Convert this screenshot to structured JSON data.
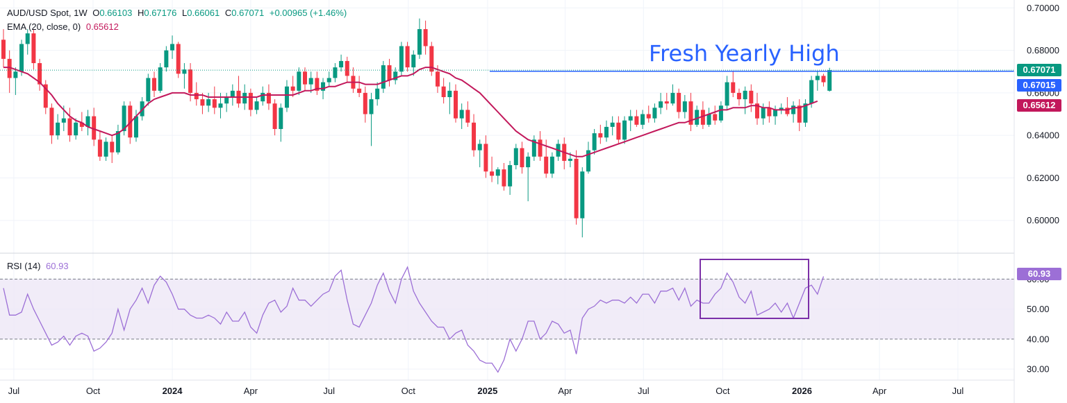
{
  "header": {
    "symbol": "AUD/USD Spot, 1W",
    "open_label": "O",
    "open": "0.66103",
    "high_label": "H",
    "high": "0.67176",
    "low_label": "L",
    "low": "0.66061",
    "close_label": "C",
    "close": "0.67071",
    "change": "+0.00965 (+1.46%)",
    "ema_label": "EMA (20, close, 0)",
    "ema_value": "0.65612",
    "rsi_label": "RSI (14)",
    "rsi_value": "60.93"
  },
  "annotation": "Fresh Yearly High",
  "badges": {
    "close": "0.67071",
    "level": "0.67015",
    "ema": "0.65612",
    "rsi": "60.93"
  },
  "colors": {
    "up": "#089981",
    "down": "#f23645",
    "ema": "#c2185b",
    "rsi": "#9c6fd6",
    "rsi_band": "#ede7f6",
    "level": "#2962ff",
    "box": "#7b2fa8"
  },
  "chart_data": [
    {
      "type": "candlestick",
      "interval": "1W",
      "x_tick_labels": [
        "Jul",
        "Oct",
        "2024",
        "Apr",
        "Jul",
        "Oct",
        "2025",
        "Apr",
        "Jul",
        "Oct",
        "2026",
        "Apr",
        "Jul"
      ],
      "y_tick_labels": [
        "0.70000",
        "0.68000",
        "0.66000",
        "0.64000",
        "0.62000",
        "0.60000"
      ],
      "ylim": [
        0.5862,
        0.7037
      ],
      "start_week": "2023-06-19",
      "ohlc": [
        [
          0.685,
          0.69,
          0.672,
          0.676
        ],
        [
          0.676,
          0.68,
          0.66,
          0.667
        ],
        [
          0.667,
          0.672,
          0.659,
          0.67
        ],
        [
          0.67,
          0.685,
          0.668,
          0.683
        ],
        [
          0.683,
          0.69,
          0.678,
          0.688
        ],
        [
          0.688,
          0.69,
          0.671,
          0.674
        ],
        [
          0.674,
          0.676,
          0.661,
          0.664
        ],
        [
          0.664,
          0.666,
          0.65,
          0.653
        ],
        [
          0.653,
          0.655,
          0.636,
          0.64
        ],
        [
          0.64,
          0.65,
          0.638,
          0.646
        ],
        [
          0.646,
          0.654,
          0.642,
          0.648
        ],
        [
          0.648,
          0.653,
          0.637,
          0.64
        ],
        [
          0.64,
          0.648,
          0.638,
          0.646
        ],
        [
          0.646,
          0.651,
          0.642,
          0.644
        ],
        [
          0.644,
          0.652,
          0.64,
          0.649
        ],
        [
          0.649,
          0.653,
          0.635,
          0.638
        ],
        [
          0.638,
          0.642,
          0.628,
          0.63
        ],
        [
          0.63,
          0.639,
          0.628,
          0.637
        ],
        [
          0.637,
          0.64,
          0.627,
          0.632
        ],
        [
          0.632,
          0.645,
          0.631,
          0.642
        ],
        [
          0.642,
          0.656,
          0.64,
          0.654
        ],
        [
          0.654,
          0.656,
          0.636,
          0.639
        ],
        [
          0.639,
          0.652,
          0.637,
          0.649
        ],
        [
          0.649,
          0.658,
          0.647,
          0.656
        ],
        [
          0.656,
          0.669,
          0.654,
          0.667
        ],
        [
          0.667,
          0.67,
          0.658,
          0.661
        ],
        [
          0.661,
          0.674,
          0.66,
          0.672
        ],
        [
          0.672,
          0.682,
          0.67,
          0.68
        ],
        [
          0.68,
          0.687,
          0.676,
          0.683
        ],
        [
          0.683,
          0.684,
          0.667,
          0.669
        ],
        [
          0.669,
          0.674,
          0.662,
          0.671
        ],
        [
          0.671,
          0.674,
          0.656,
          0.66
        ],
        [
          0.66,
          0.665,
          0.654,
          0.657
        ],
        [
          0.657,
          0.66,
          0.65,
          0.654
        ],
        [
          0.654,
          0.66,
          0.651,
          0.657
        ],
        [
          0.657,
          0.663,
          0.65,
          0.653
        ],
        [
          0.653,
          0.66,
          0.648,
          0.655
        ],
        [
          0.655,
          0.66,
          0.651,
          0.658
        ],
        [
          0.658,
          0.664,
          0.654,
          0.661
        ],
        [
          0.661,
          0.668,
          0.653,
          0.655
        ],
        [
          0.655,
          0.664,
          0.652,
          0.66
        ],
        [
          0.66,
          0.662,
          0.649,
          0.652
        ],
        [
          0.652,
          0.658,
          0.65,
          0.656
        ],
        [
          0.656,
          0.663,
          0.654,
          0.66
        ],
        [
          0.66,
          0.664,
          0.652,
          0.655
        ],
        [
          0.655,
          0.657,
          0.64,
          0.643
        ],
        [
          0.643,
          0.655,
          0.637,
          0.653
        ],
        [
          0.653,
          0.666,
          0.651,
          0.663
        ],
        [
          0.663,
          0.668,
          0.658,
          0.661
        ],
        [
          0.661,
          0.672,
          0.659,
          0.67
        ],
        [
          0.67,
          0.672,
          0.661,
          0.664
        ],
        [
          0.664,
          0.67,
          0.66,
          0.667
        ],
        [
          0.667,
          0.67,
          0.659,
          0.661
        ],
        [
          0.661,
          0.667,
          0.657,
          0.665
        ],
        [
          0.665,
          0.67,
          0.663,
          0.667
        ],
        [
          0.667,
          0.674,
          0.665,
          0.672
        ],
        [
          0.672,
          0.678,
          0.67,
          0.675
        ],
        [
          0.675,
          0.677,
          0.665,
          0.668
        ],
        [
          0.668,
          0.672,
          0.66,
          0.662
        ],
        [
          0.662,
          0.668,
          0.658,
          0.66
        ],
        [
          0.66,
          0.663,
          0.646,
          0.65
        ],
        [
          0.65,
          0.66,
          0.635,
          0.657
        ],
        [
          0.657,
          0.665,
          0.654,
          0.662
        ],
        [
          0.662,
          0.675,
          0.66,
          0.673
        ],
        [
          0.673,
          0.676,
          0.663,
          0.666
        ],
        [
          0.666,
          0.672,
          0.664,
          0.67
        ],
        [
          0.67,
          0.684,
          0.668,
          0.682
        ],
        [
          0.682,
          0.684,
          0.67,
          0.672
        ],
        [
          0.672,
          0.68,
          0.668,
          0.678
        ],
        [
          0.678,
          0.695,
          0.676,
          0.69
        ],
        [
          0.69,
          0.694,
          0.678,
          0.682
        ],
        [
          0.682,
          0.684,
          0.668,
          0.67
        ],
        [
          0.67,
          0.673,
          0.66,
          0.663
        ],
        [
          0.663,
          0.667,
          0.655,
          0.658
        ],
        [
          0.658,
          0.665,
          0.65,
          0.661
        ],
        [
          0.661,
          0.664,
          0.646,
          0.648
        ],
        [
          0.648,
          0.655,
          0.643,
          0.652
        ],
        [
          0.652,
          0.656,
          0.644,
          0.646
        ],
        [
          0.646,
          0.65,
          0.63,
          0.633
        ],
        [
          0.633,
          0.638,
          0.625,
          0.636
        ],
        [
          0.636,
          0.64,
          0.62,
          0.623
        ],
        [
          0.623,
          0.63,
          0.618,
          0.621
        ],
        [
          0.621,
          0.625,
          0.617,
          0.624
        ],
        [
          0.624,
          0.627,
          0.614,
          0.616
        ],
        [
          0.616,
          0.628,
          0.612,
          0.626
        ],
        [
          0.626,
          0.636,
          0.624,
          0.634
        ],
        [
          0.634,
          0.637,
          0.622,
          0.625
        ],
        [
          0.625,
          0.632,
          0.609,
          0.63
        ],
        [
          0.63,
          0.64,
          0.628,
          0.638
        ],
        [
          0.638,
          0.642,
          0.628,
          0.63
        ],
        [
          0.63,
          0.638,
          0.62,
          0.622
        ],
        [
          0.622,
          0.632,
          0.62,
          0.63
        ],
        [
          0.63,
          0.638,
          0.628,
          0.636
        ],
        [
          0.636,
          0.639,
          0.624,
          0.628
        ],
        [
          0.628,
          0.632,
          0.625,
          0.629
        ],
        [
          0.629,
          0.633,
          0.598,
          0.601
        ],
        [
          0.601,
          0.625,
          0.592,
          0.623
        ],
        [
          0.623,
          0.637,
          0.622,
          0.633
        ],
        [
          0.633,
          0.643,
          0.631,
          0.641
        ],
        [
          0.641,
          0.645,
          0.636,
          0.639
        ],
        [
          0.639,
          0.647,
          0.637,
          0.644
        ],
        [
          0.644,
          0.649,
          0.64,
          0.646
        ],
        [
          0.646,
          0.649,
          0.636,
          0.638
        ],
        [
          0.638,
          0.649,
          0.636,
          0.647
        ],
        [
          0.647,
          0.652,
          0.642,
          0.649
        ],
        [
          0.649,
          0.652,
          0.644,
          0.645
        ],
        [
          0.645,
          0.652,
          0.643,
          0.65
        ],
        [
          0.65,
          0.654,
          0.646,
          0.648
        ],
        [
          0.648,
          0.655,
          0.646,
          0.653
        ],
        [
          0.653,
          0.66,
          0.65,
          0.656
        ],
        [
          0.656,
          0.66,
          0.652,
          0.655
        ],
        [
          0.655,
          0.664,
          0.654,
          0.66
        ],
        [
          0.66,
          0.662,
          0.648,
          0.651
        ],
        [
          0.651,
          0.659,
          0.648,
          0.656
        ],
        [
          0.656,
          0.66,
          0.642,
          0.645
        ],
        [
          0.645,
          0.654,
          0.644,
          0.652
        ],
        [
          0.652,
          0.656,
          0.643,
          0.645
        ],
        [
          0.645,
          0.653,
          0.644,
          0.65
        ],
        [
          0.65,
          0.654,
          0.645,
          0.647
        ],
        [
          0.647,
          0.656,
          0.646,
          0.654
        ],
        [
          0.654,
          0.668,
          0.652,
          0.665
        ],
        [
          0.665,
          0.67,
          0.658,
          0.66
        ],
        [
          0.66,
          0.662,
          0.654,
          0.657
        ],
        [
          0.657,
          0.663,
          0.65,
          0.661
        ],
        [
          0.661,
          0.664,
          0.651,
          0.655
        ],
        [
          0.655,
          0.66,
          0.645,
          0.648
        ],
        [
          0.648,
          0.655,
          0.645,
          0.653
        ],
        [
          0.653,
          0.656,
          0.646,
          0.649
        ],
        [
          0.649,
          0.654,
          0.645,
          0.652
        ],
        [
          0.652,
          0.655,
          0.65,
          0.653
        ],
        [
          0.653,
          0.658,
          0.649,
          0.65
        ],
        [
          0.65,
          0.656,
          0.646,
          0.654
        ],
        [
          0.654,
          0.657,
          0.642,
          0.646
        ],
        [
          0.646,
          0.657,
          0.644,
          0.655
        ],
        [
          0.655,
          0.668,
          0.653,
          0.666
        ],
        [
          0.666,
          0.67,
          0.661,
          0.668
        ],
        [
          0.668,
          0.669,
          0.663,
          0.665
        ],
        [
          0.661,
          0.6718,
          0.6606,
          0.6707
        ]
      ],
      "ema_series_name": "EMA (20, close, 0)",
      "ema": [
        0.672,
        0.672,
        0.671,
        0.67,
        0.669,
        0.667,
        0.665,
        0.662,
        0.659,
        0.655,
        0.652,
        0.649,
        0.647,
        0.646,
        0.644,
        0.643,
        0.642,
        0.641,
        0.64,
        0.641,
        0.643,
        0.646,
        0.649,
        0.652,
        0.655,
        0.657,
        0.658,
        0.659,
        0.66,
        0.66,
        0.66,
        0.659,
        0.659,
        0.659,
        0.658,
        0.658,
        0.658,
        0.658,
        0.658,
        0.658,
        0.658,
        0.658,
        0.658,
        0.659,
        0.659,
        0.659,
        0.659,
        0.659,
        0.659,
        0.66,
        0.661,
        0.661,
        0.662,
        0.662,
        0.663,
        0.663,
        0.664,
        0.665,
        0.665,
        0.665,
        0.664,
        0.664,
        0.664,
        0.665,
        0.666,
        0.667,
        0.668,
        0.668,
        0.669,
        0.671,
        0.672,
        0.672,
        0.671,
        0.67,
        0.669,
        0.667,
        0.666,
        0.664,
        0.662,
        0.66,
        0.657,
        0.654,
        0.651,
        0.648,
        0.645,
        0.642,
        0.64,
        0.638,
        0.637,
        0.636,
        0.635,
        0.634,
        0.633,
        0.632,
        0.631,
        0.63,
        0.63,
        0.631,
        0.632,
        0.633,
        0.634,
        0.635,
        0.636,
        0.637,
        0.638,
        0.639,
        0.64,
        0.641,
        0.642,
        0.643,
        0.644,
        0.645,
        0.646,
        0.646,
        0.647,
        0.648,
        0.649,
        0.65,
        0.651,
        0.652,
        0.652,
        0.653,
        0.653,
        0.653,
        0.654,
        0.654,
        0.653,
        0.653,
        0.652,
        0.652,
        0.652,
        0.653,
        0.653,
        0.654,
        0.655,
        0.6561
      ],
      "annotation_level": 0.67015,
      "current_close": 0.67071,
      "ema_last": 0.65612
    },
    {
      "type": "line",
      "series_name": "RSI (14)",
      "y_tick_labels": [
        "60.00",
        "50.00",
        "40.00",
        "30.00"
      ],
      "ylim": [
        26.8,
        67.5
      ],
      "band": [
        40,
        60
      ],
      "rsi": [
        57,
        48,
        48,
        49,
        55,
        50,
        46,
        42,
        38,
        39,
        41,
        38,
        41,
        42,
        41,
        36,
        37,
        39,
        42,
        50,
        43,
        50,
        53,
        57,
        52,
        58,
        61,
        59,
        55,
        50,
        50,
        48,
        47,
        47,
        48,
        47,
        45,
        49,
        46,
        46,
        49,
        44,
        42,
        48,
        52,
        53,
        49,
        51,
        57,
        53,
        53,
        51,
        53,
        55,
        56,
        61,
        63,
        53,
        45,
        44,
        48,
        52,
        58,
        62,
        56,
        52,
        60,
        64,
        56,
        52,
        49,
        46,
        44,
        44,
        40,
        42,
        43,
        38,
        36,
        33,
        32,
        32,
        29,
        33,
        40,
        36,
        40,
        46,
        46,
        40,
        42,
        46,
        45,
        42,
        43,
        35,
        47,
        50,
        51,
        53,
        52,
        53,
        53,
        52,
        54,
        52,
        55,
        55,
        52,
        56,
        56,
        57,
        53,
        57,
        51,
        53,
        52,
        52,
        55,
        57,
        62,
        59,
        54,
        52,
        56,
        48,
        49,
        50,
        52,
        49,
        52,
        47,
        52,
        57,
        58,
        55,
        60.9
      ]
    }
  ]
}
